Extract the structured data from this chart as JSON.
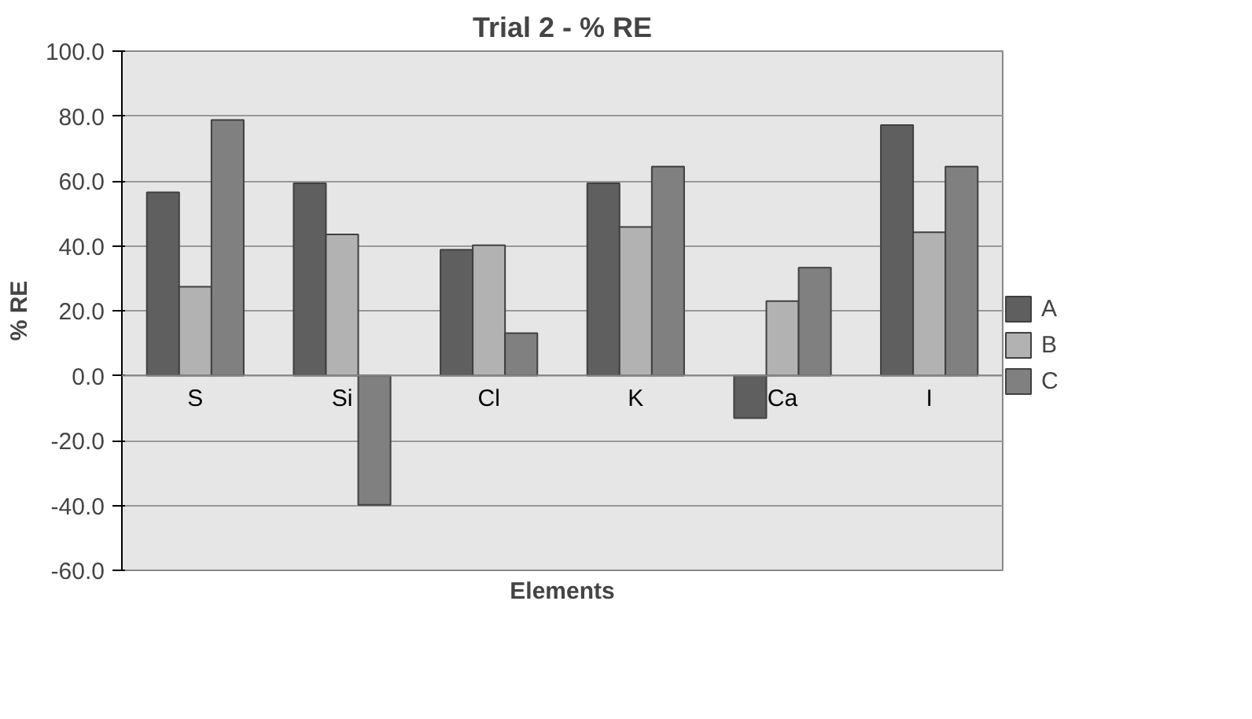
{
  "chart_data": {
    "type": "bar",
    "title": "Trial 2 - % RE",
    "xlabel": "Elements",
    "ylabel": "% RE",
    "categories": [
      "S",
      "Si",
      "Cl",
      "K",
      "Ca",
      "I"
    ],
    "series": [
      {
        "name": "A",
        "color": "#5f5f5f",
        "values": [
          56.5,
          59.3,
          38.8,
          59.3,
          -13.1,
          77.2
        ]
      },
      {
        "name": "B",
        "color": "#b2b2b2",
        "values": [
          27.4,
          43.5,
          40.2,
          45.8,
          23.0,
          44.2
        ]
      },
      {
        "name": "C",
        "color": "#808080",
        "values": [
          78.8,
          -39.8,
          13.1,
          64.4,
          33.3,
          64.4
        ]
      }
    ],
    "ylim": [
      -60,
      100
    ],
    "yticks": [
      {
        "value": -60,
        "label": "-60.0"
      },
      {
        "value": -40,
        "label": "-40.0"
      },
      {
        "value": -20,
        "label": "-20.0"
      },
      {
        "value": 0,
        "label": "0.0"
      },
      {
        "value": 20,
        "label": "20.0"
      },
      {
        "value": 40,
        "label": "40.0"
      },
      {
        "value": 60,
        "label": "60.0"
      },
      {
        "value": 80,
        "label": "80.0"
      },
      {
        "value": 100,
        "label": "100.0"
      }
    ],
    "grid": "y",
    "legend": "right"
  }
}
